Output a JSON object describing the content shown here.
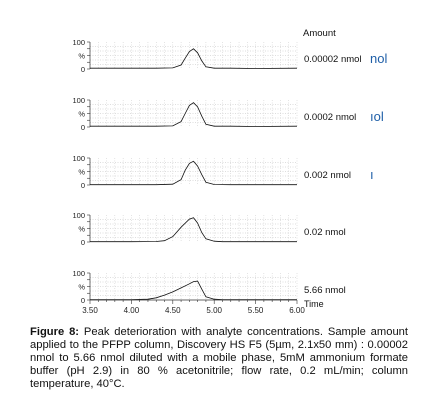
{
  "amount_header": "Amount",
  "time_label": "Time",
  "chart_data": {
    "type": "line",
    "x_axis": {
      "label": "Time",
      "range": [
        3.5,
        6.0
      ],
      "ticks": [
        "3.50",
        "4.00",
        "4.50",
        "5.00",
        "5.50",
        "6.00"
      ]
    },
    "y_axis": {
      "range": [
        0,
        100
      ],
      "ticks": [
        "100",
        "%",
        "0"
      ]
    },
    "grid": true,
    "panels": [
      {
        "amount": "0.00002 nmol",
        "clipped_label": "nol",
        "x": [
          3.5,
          4.0,
          4.3,
          4.5,
          4.6,
          4.65,
          4.7,
          4.75,
          4.8,
          4.85,
          4.9,
          5.0,
          5.2,
          5.5,
          6.0
        ],
        "y": [
          3,
          3,
          3,
          4,
          15,
          40,
          65,
          75,
          60,
          30,
          8,
          3,
          3,
          2,
          3
        ]
      },
      {
        "amount": "0.0002 nmol",
        "clipped_label": "ıol",
        "x": [
          3.5,
          4.0,
          4.3,
          4.5,
          4.6,
          4.65,
          4.7,
          4.75,
          4.8,
          4.85,
          4.9,
          5.0,
          5.2,
          5.5,
          6.0
        ],
        "y": [
          3,
          3,
          3,
          4,
          20,
          50,
          80,
          90,
          75,
          40,
          10,
          3,
          3,
          2,
          3
        ]
      },
      {
        "amount": "0.002 nmol",
        "clipped_label": "ı",
        "x": [
          3.5,
          4.0,
          4.3,
          4.5,
          4.6,
          4.65,
          4.7,
          4.75,
          4.8,
          4.85,
          4.9,
          5.0,
          5.2,
          5.5,
          6.0
        ],
        "y": [
          1,
          1,
          1,
          3,
          20,
          55,
          80,
          88,
          70,
          38,
          10,
          2,
          1,
          1,
          1
        ]
      },
      {
        "amount": "0.02 nmol",
        "clipped_label": "",
        "x": [
          3.5,
          4.0,
          4.3,
          4.4,
          4.5,
          4.6,
          4.7,
          4.75,
          4.8,
          4.85,
          4.9,
          5.0,
          5.1,
          5.5,
          6.0
        ],
        "y": [
          1,
          1,
          2,
          5,
          20,
          55,
          85,
          90,
          70,
          35,
          12,
          3,
          1,
          1,
          1
        ]
      },
      {
        "amount": "5.66 nmol",
        "clipped_label": "",
        "x": [
          3.5,
          4.0,
          4.2,
          4.3,
          4.4,
          4.5,
          4.6,
          4.7,
          4.75,
          4.8,
          4.85,
          4.9,
          5.0,
          5.1,
          5.5,
          6.0
        ],
        "y": [
          1,
          1,
          3,
          8,
          18,
          30,
          45,
          60,
          68,
          70,
          40,
          12,
          3,
          1,
          1,
          1
        ]
      }
    ]
  },
  "caption": {
    "label": "Figure 8:",
    "text": " Peak deterioration with analyte concentrations. Sample amount applied to the PFPP column, Discovery HS F5 (5µm, 2.1x50 mm) : 0.00002 nmol to 5.66 nmol diluted with a mobile phase, 5mM ammonium formate buffer (pH 2.9) in 80 % acetonitrile; flow rate, 0.2 mL/min; column temperature, 40°C."
  }
}
